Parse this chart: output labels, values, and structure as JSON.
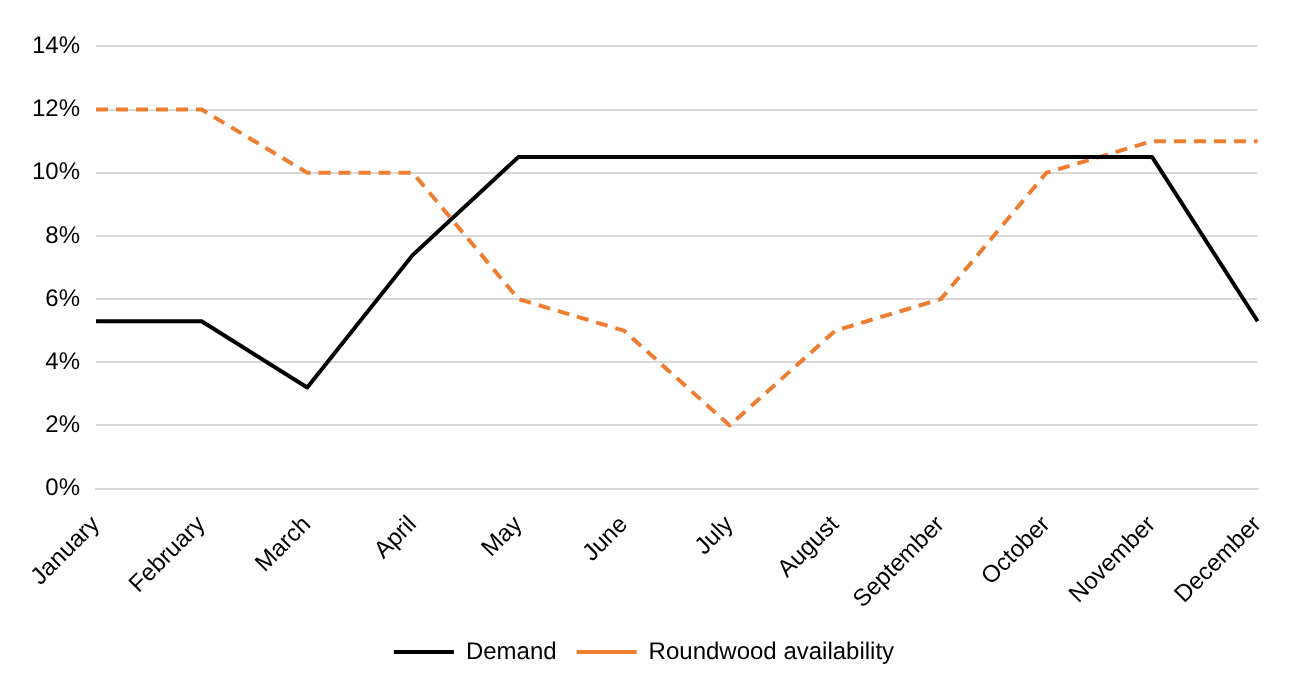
{
  "chart_data": {
    "type": "line",
    "categories": [
      "January",
      "February",
      "March",
      "April",
      "May",
      "June",
      "July",
      "August",
      "September",
      "October",
      "November",
      "December"
    ],
    "series": [
      {
        "name": "Demand",
        "color": "#000000",
        "line_style": "solid",
        "values": [
          5.3,
          5.3,
          3.2,
          7.4,
          10.5,
          10.5,
          10.5,
          10.5,
          10.5,
          10.5,
          10.5,
          5.3
        ]
      },
      {
        "name": "Roundwood availability",
        "color": "#ed7d31",
        "line_style": "dashed",
        "values": [
          12,
          12,
          10,
          10,
          6,
          5,
          2,
          5,
          6,
          10,
          11,
          11
        ]
      }
    ],
    "ylim": [
      0,
      14
    ],
    "yticks": [
      {
        "value": 0,
        "label": "0%"
      },
      {
        "value": 2,
        "label": "2%"
      },
      {
        "value": 4,
        "label": "4%"
      },
      {
        "value": 6,
        "label": "6%"
      },
      {
        "value": 8,
        "label": "8%"
      },
      {
        "value": 10,
        "label": "10%"
      },
      {
        "value": 12,
        "label": "12%"
      },
      {
        "value": 14,
        "label": "14%"
      }
    ],
    "grid": "y",
    "legend": "bottom",
    "marker": "none"
  }
}
